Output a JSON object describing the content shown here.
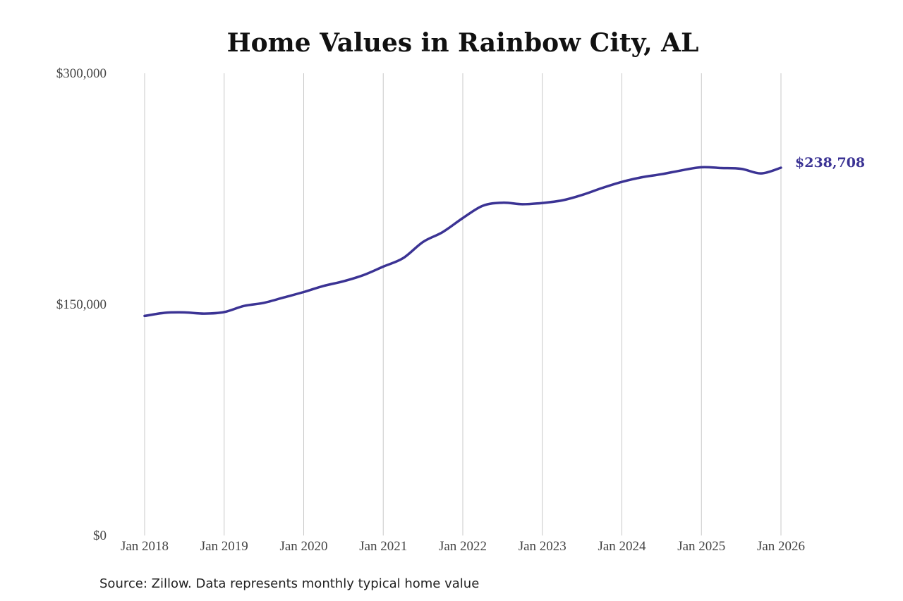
{
  "chart_data": {
    "type": "line",
    "title": "Home Values in Rainbow City, AL",
    "source_note": "Source: Zillow. Data represents monthly typical home value",
    "ylim": [
      0,
      300000
    ],
    "y_ticks": [
      {
        "value": 0,
        "label": "$0"
      },
      {
        "value": 150000,
        "label": "$150,000"
      },
      {
        "value": 300000,
        "label": "$300,000"
      }
    ],
    "x_ticks": [
      "Jan 2018",
      "Jan 2019",
      "Jan 2020",
      "Jan 2021",
      "Jan 2022",
      "Jan 2023",
      "Jan 2024",
      "Jan 2025",
      "Jan 2026"
    ],
    "grid": "vertical",
    "line_color": "#3b3394",
    "end_label": "$238,708",
    "series": [
      {
        "x": [
          "2018-01",
          "2018-04",
          "2018-07",
          "2018-10",
          "2019-01",
          "2019-04",
          "2019-07",
          "2019-10",
          "2020-01",
          "2020-04",
          "2020-07",
          "2020-10",
          "2021-01",
          "2021-04",
          "2021-07",
          "2021-10",
          "2022-01",
          "2022-04",
          "2022-07",
          "2022-10",
          "2023-01",
          "2023-04",
          "2023-07",
          "2023-10",
          "2024-01",
          "2024-04",
          "2024-07",
          "2024-10",
          "2025-01",
          "2025-04",
          "2025-07",
          "2025-10",
          "2026-01"
        ],
        "values": [
          142500,
          144500,
          144800,
          144000,
          145000,
          149000,
          151000,
          154500,
          158000,
          162000,
          165000,
          169000,
          174500,
          180000,
          190500,
          197000,
          206000,
          214000,
          216000,
          215000,
          215800,
          217500,
          221000,
          225500,
          229500,
          232500,
          234500,
          237000,
          239000,
          238500,
          238000,
          235000,
          238708
        ]
      }
    ]
  }
}
